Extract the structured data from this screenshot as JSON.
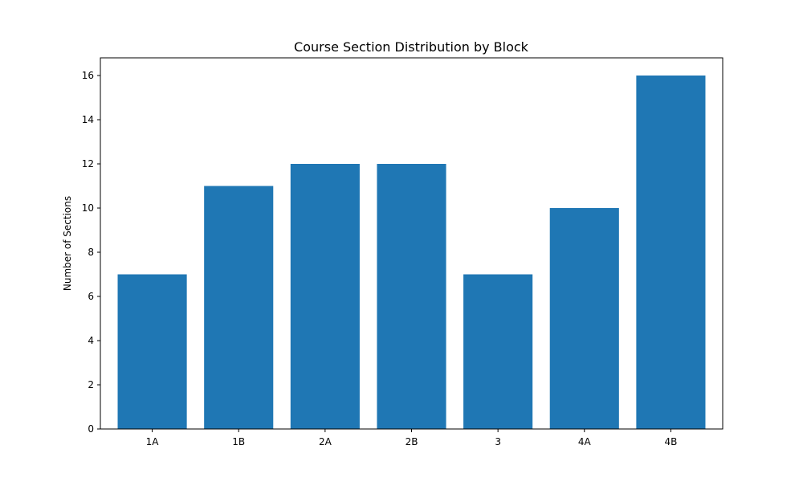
{
  "chart_data": {
    "type": "bar",
    "title": "Course Section Distribution by Block",
    "xlabel": "",
    "ylabel": "Number of Sections",
    "categories": [
      "1A",
      "1B",
      "2A",
      "2B",
      "3",
      "4A",
      "4B"
    ],
    "values": [
      7,
      11,
      12,
      12,
      7,
      10,
      16
    ],
    "ylim": [
      0,
      16.8
    ],
    "yticks": [
      0,
      2,
      4,
      6,
      8,
      10,
      12,
      14,
      16
    ],
    "grid": false,
    "legend": "none",
    "bar_color": "#1f77b4"
  }
}
